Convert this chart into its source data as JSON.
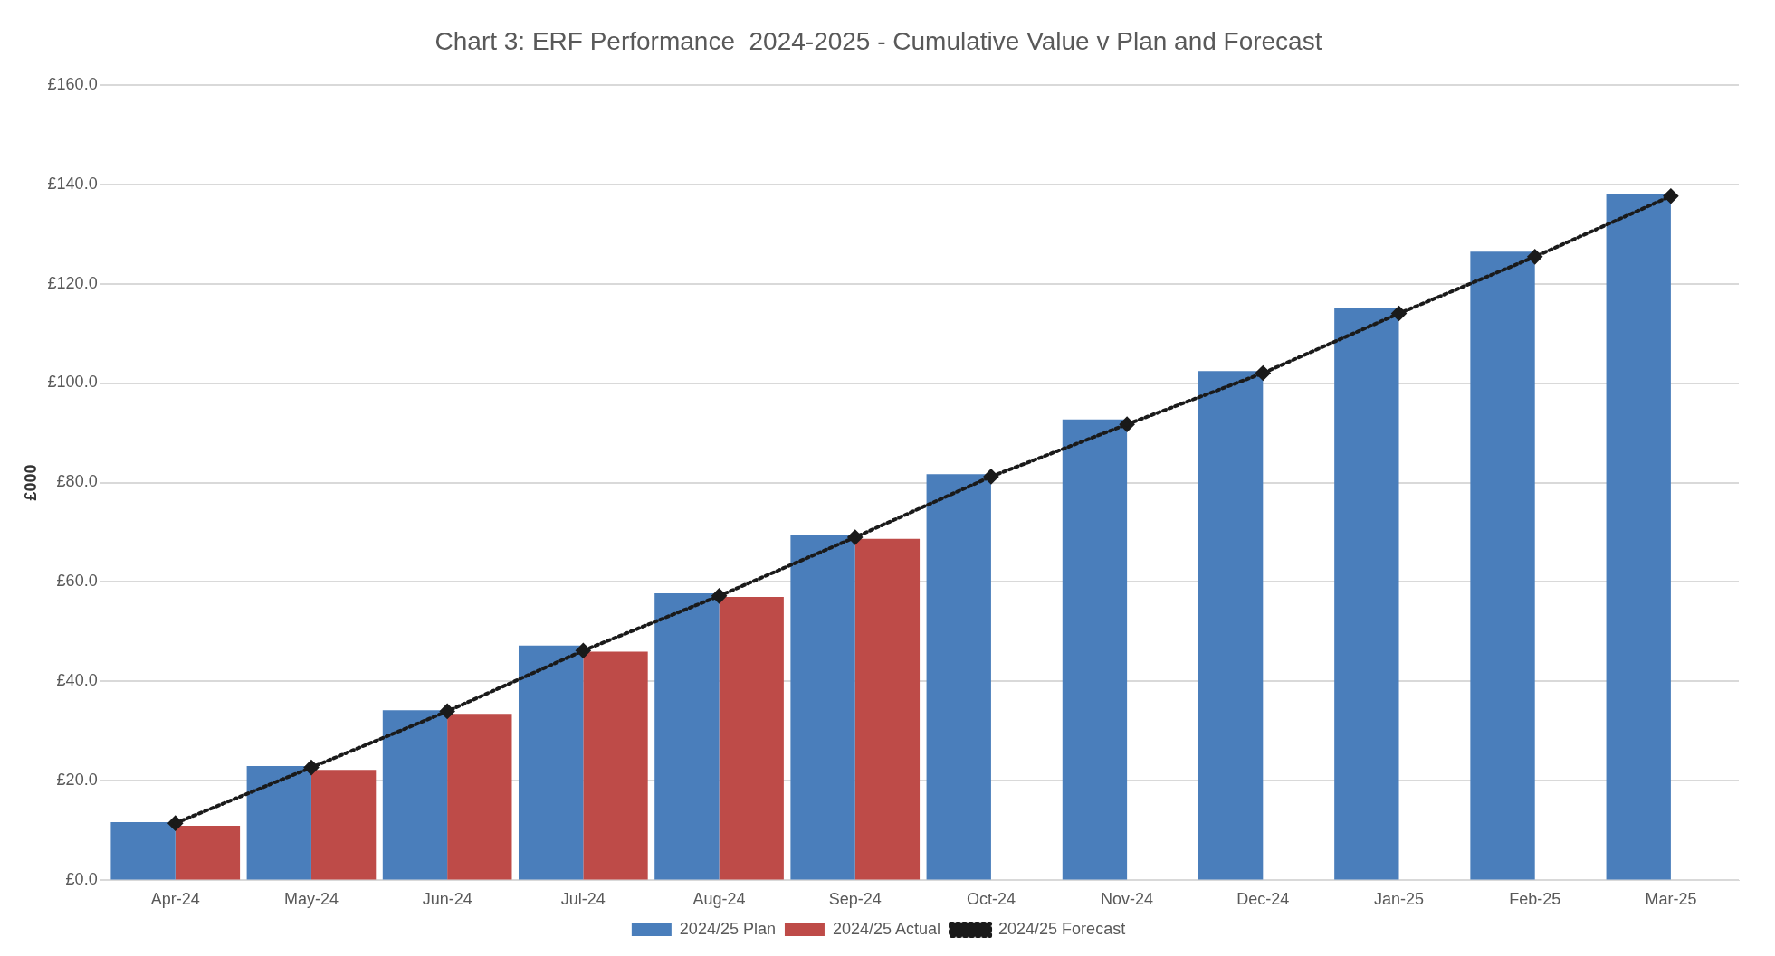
{
  "chart_data": {
    "type": "bar",
    "title": "Chart 3: ERF Performance  2024-2025 - Cumulative Value v Plan and Forecast",
    "ylabel": "£000",
    "categories": [
      "Apr-24",
      "May-24",
      "Jun-24",
      "Jul-24",
      "Aug-24",
      "Sep-24",
      "Oct-24",
      "Nov-24",
      "Dec-24",
      "Jan-25",
      "Feb-25",
      "Mar-25"
    ],
    "series": [
      {
        "name": "2024/25 Plan",
        "color": "#4a7ebb",
        "values": [
          11.7,
          23.0,
          34.2,
          47.2,
          57.7,
          69.4,
          81.7,
          92.7,
          102.4,
          115.2,
          126.4,
          138.1
        ]
      },
      {
        "name": "2024/25 Actual",
        "color": "#be4b48",
        "values": [
          11.0,
          22.2,
          33.5,
          46.0,
          57.0,
          68.7,
          null,
          null,
          null,
          null,
          null,
          null
        ]
      },
      {
        "name": "2024/25 Forecast",
        "type": "line",
        "color": "#1a1a1a",
        "marker": "diamond",
        "line_style": "dotted",
        "values": [
          11.5,
          22.7,
          34.0,
          46.2,
          57.2,
          69.0,
          81.2,
          91.7,
          102.0,
          114.0,
          125.4,
          137.6
        ]
      }
    ],
    "ylim": [
      0,
      160
    ],
    "yticks": [
      {
        "value": 0,
        "label": "£0.0"
      },
      {
        "value": 20,
        "label": "£20.0"
      },
      {
        "value": 40,
        "label": "£40.0"
      },
      {
        "value": 60,
        "label": "£60.0"
      },
      {
        "value": 80,
        "label": "£80.0"
      },
      {
        "value": 100,
        "label": "£100.0"
      },
      {
        "value": 120,
        "label": "£120.0"
      },
      {
        "value": 140,
        "label": "£140.0"
      },
      {
        "value": 160,
        "label": "£160.0"
      }
    ],
    "grid": "y",
    "legend": "bottom"
  }
}
